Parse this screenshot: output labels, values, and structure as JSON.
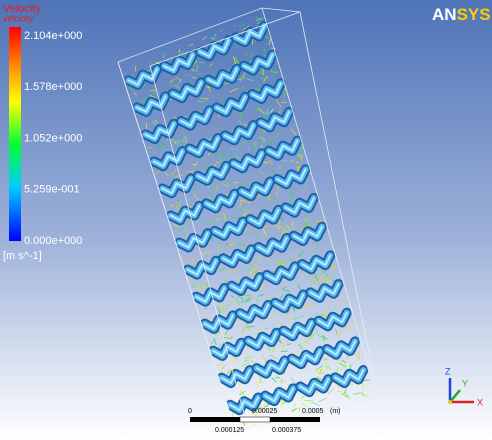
{
  "logo": {
    "left": "AN",
    "right": "SYS"
  },
  "legend": {
    "title": "Velocity",
    "subtitle": "velocity",
    "labels": [
      "2.104e+000",
      "1.578e+000",
      "1.052e+000",
      "5.259e-001",
      "0.000e+000"
    ],
    "unit": "[m s^-1]"
  },
  "scale_bar": {
    "top_labels": [
      "0",
      "0.00025",
      "0.0005",
      "(m)"
    ],
    "bottom_labels": [
      "0.000125",
      "0.000375"
    ]
  },
  "triad": {
    "z": "Z",
    "y": "Y",
    "x": "X"
  }
}
